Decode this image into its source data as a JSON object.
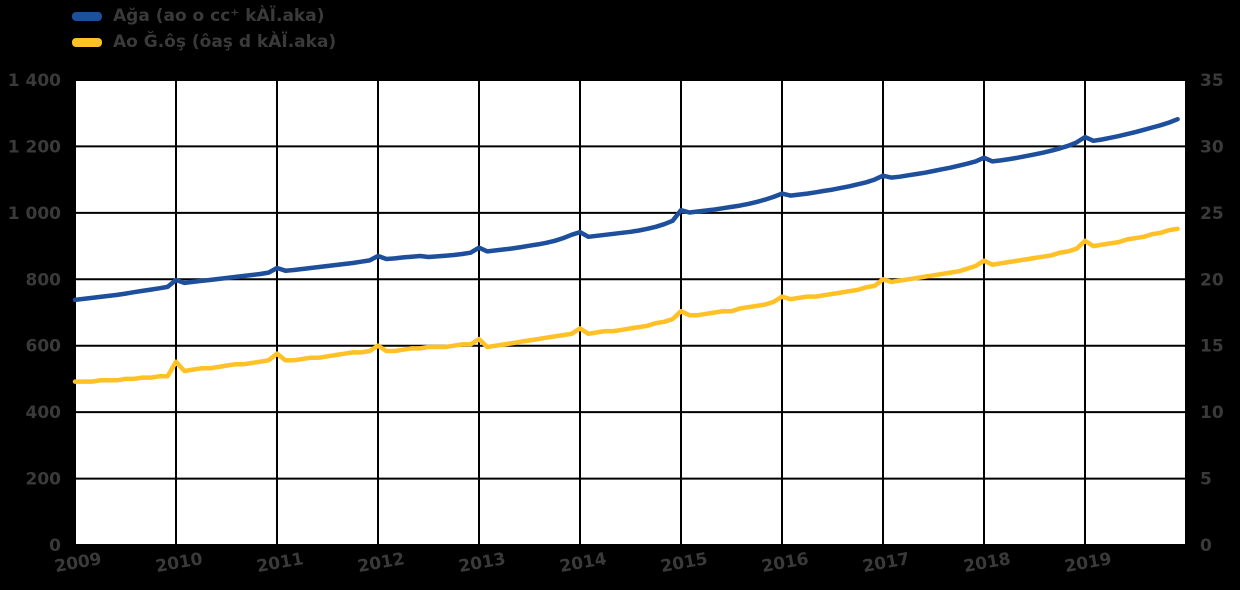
{
  "page": {
    "background": "#000000"
  },
  "legend": {
    "position": "top-left",
    "items": [
      {
        "label": "Ağa (ao o cc⁺ kÀÏ.aka)",
        "color": "#1e4f9c"
      },
      {
        "label": "Ao Ğ.ôş (ôaş d kÀÏ.aka)",
        "color": "#ffc125"
      }
    ]
  },
  "chart_data": {
    "type": "line",
    "title": "",
    "plot_background": "#ffffff",
    "grid": true,
    "grid_color": "#000000",
    "axis_label_color": "#3a3a3a",
    "legend_position": "top-left",
    "x": {
      "start_year": 2009,
      "end_year": 2019,
      "frequency": "monthly",
      "tick_labels": [
        "2009",
        "2010",
        "2011",
        "2012",
        "2013",
        "2014",
        "2015",
        "2016",
        "2017",
        "2018",
        "2019"
      ]
    },
    "y_left": {
      "range": [
        0,
        1400
      ],
      "tick_step": 200,
      "tick_labels": [
        "0",
        "200",
        "400",
        "600",
        "800",
        "1 000",
        "1 200",
        "1 400"
      ]
    },
    "y_right": {
      "range": [
        0,
        35
      ],
      "tick_step": 5,
      "tick_labels": [
        "0",
        "5",
        "10",
        "15",
        "20",
        "25",
        "30",
        "35"
      ]
    },
    "series": [
      {
        "name": "Ağa (ao o cc⁺ kÀÏ.aka)",
        "color": "#1e4f9c",
        "y_axis": "left",
        "values": [
          738,
          741,
          744,
          747,
          750,
          753,
          757,
          761,
          765,
          769,
          773,
          777,
          798,
          789,
          792,
          795,
          798,
          801,
          804,
          807,
          810,
          813,
          816,
          820,
          834,
          826,
          828,
          831,
          834,
          837,
          840,
          843,
          846,
          849,
          853,
          857,
          870,
          861,
          863,
          866,
          868,
          870,
          867,
          869,
          871,
          873,
          876,
          880,
          895,
          884,
          887,
          890,
          893,
          897,
          901,
          905,
          910,
          916,
          924,
          934,
          942,
          928,
          931,
          934,
          937,
          940,
          943,
          947,
          952,
          958,
          966,
          976,
          1008,
          1001,
          1004,
          1007,
          1010,
          1014,
          1018,
          1022,
          1027,
          1033,
          1040,
          1048,
          1058,
          1052,
          1055,
          1058,
          1062,
          1066,
          1070,
          1075,
          1080,
          1086,
          1092,
          1100,
          1112,
          1106,
          1109,
          1113,
          1117,
          1121,
          1126,
          1131,
          1136,
          1142,
          1148,
          1155,
          1166,
          1155,
          1158,
          1162,
          1166,
          1171,
          1176,
          1181,
          1187,
          1194,
          1202,
          1212,
          1228,
          1217,
          1221,
          1226,
          1231,
          1237,
          1243,
          1250,
          1257,
          1264,
          1272,
          1282
        ]
      },
      {
        "name": "Ao Ğ.ôş (ôaş d kÀÏ.aka)",
        "color": "#ffc125",
        "y_axis": "right",
        "values": [
          12.3,
          12.3,
          12.3,
          12.4,
          12.4,
          12.4,
          12.5,
          12.5,
          12.6,
          12.6,
          12.7,
          12.7,
          13.8,
          13.1,
          13.2,
          13.3,
          13.3,
          13.4,
          13.5,
          13.6,
          13.6,
          13.7,
          13.8,
          13.9,
          14.4,
          13.9,
          13.9,
          14.0,
          14.1,
          14.1,
          14.2,
          14.3,
          14.4,
          14.5,
          14.5,
          14.6,
          15.0,
          14.6,
          14.6,
          14.7,
          14.8,
          14.8,
          14.9,
          14.9,
          14.9,
          15.0,
          15.1,
          15.1,
          15.5,
          14.9,
          15.0,
          15.1,
          15.2,
          15.3,
          15.4,
          15.5,
          15.6,
          15.7,
          15.8,
          15.9,
          16.3,
          15.9,
          16.0,
          16.1,
          16.1,
          16.2,
          16.3,
          16.4,
          16.5,
          16.7,
          16.8,
          17.0,
          17.6,
          17.3,
          17.3,
          17.4,
          17.5,
          17.6,
          17.6,
          17.8,
          17.9,
          18.0,
          18.1,
          18.3,
          18.7,
          18.5,
          18.6,
          18.7,
          18.7,
          18.8,
          18.9,
          19.0,
          19.1,
          19.2,
          19.4,
          19.5,
          20.0,
          19.8,
          19.9,
          20.0,
          20.1,
          20.2,
          20.3,
          20.4,
          20.5,
          20.6,
          20.8,
          21.0,
          21.4,
          21.1,
          21.2,
          21.3,
          21.4,
          21.5,
          21.6,
          21.7,
          21.8,
          22.0,
          22.1,
          22.3,
          22.9,
          22.5,
          22.6,
          22.7,
          22.8,
          23.0,
          23.1,
          23.2,
          23.4,
          23.5,
          23.7,
          23.8
        ]
      }
    ]
  }
}
